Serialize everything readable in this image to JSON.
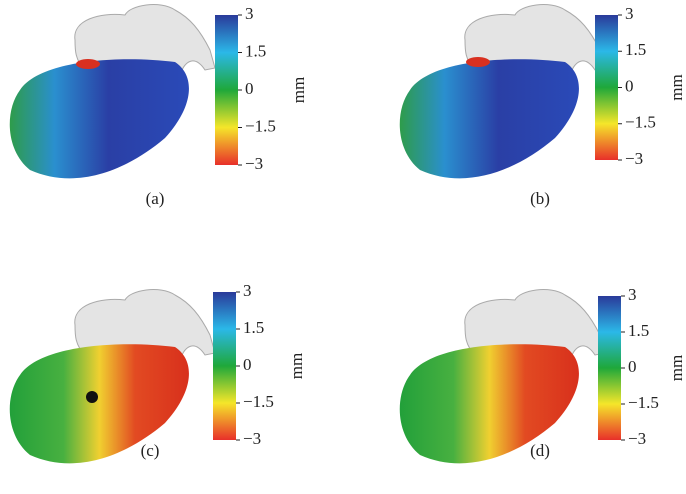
{
  "panels": [
    {
      "label": "(a)",
      "colorbar": {
        "unit": "mm",
        "ticks": [
          3,
          1.5,
          0,
          {
            "value": -1.5,
            "label": "−1.5"
          },
          {
            "value": -3,
            "label": "−3"
          }
        ]
      }
    },
    {
      "label": "(b)",
      "colorbar": {
        "unit": "mm",
        "ticks": [
          3,
          1.5,
          0,
          {
            "value": -1.5,
            "label": "−1.5"
          },
          {
            "value": -3,
            "label": "−3"
          }
        ]
      }
    },
    {
      "label": "(c)",
      "colorbar": {
        "unit": "mm",
        "ticks": [
          3,
          1.5,
          0,
          {
            "value": -1.5,
            "label": "−1.5"
          },
          {
            "value": -3,
            "label": "−3"
          }
        ]
      }
    },
    {
      "label": "(d)",
      "colorbar": {
        "unit": "mm",
        "ticks": [
          3,
          1.5,
          0,
          {
            "value": -1.5,
            "label": "−1.5"
          },
          {
            "value": -3,
            "label": "−3"
          }
        ]
      }
    }
  ]
}
